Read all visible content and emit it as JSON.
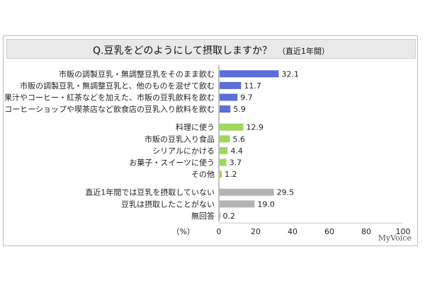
{
  "header": {
    "title": "Q.豆乳をどのようにして摂取しますか？",
    "subtitle": "（直近1年間）"
  },
  "brand": "MyVoice",
  "colors": {
    "blue": "#5b6fd6",
    "green": "#9fd85a",
    "gray": "#b4b4b4",
    "axis": "#808080",
    "grid": "#c8c8c8"
  },
  "chart_data": {
    "type": "bar",
    "orientation": "horizontal",
    "xlim": [
      0,
      100
    ],
    "x_ticks": [
      0,
      20,
      40,
      60,
      80,
      100
    ],
    "unit_label": "（%）",
    "grid": false,
    "categories": [
      "市販の調製豆乳・無調整豆乳をそのまま飲む",
      "市販の調製豆乳・無調整豆乳と、他のものを混ぜて飲む",
      "果汁やコーヒー・紅茶などを加えた、市販の豆乳飲料を飲む",
      "コーヒーショップや喫茶店など飲食店の豆乳入り飲料を飲む",
      "料理に使う",
      "市販の豆乳入り食品",
      "シリアルにかける",
      "お菓子・スイーツに使う",
      "その他",
      "直近1年間では豆乳を摂取していない",
      "豆乳は摂取したことがない",
      "無回答"
    ],
    "values": [
      32.1,
      11.7,
      9.7,
      5.9,
      12.9,
      5.6,
      4.4,
      3.7,
      1.2,
      29.5,
      19.0,
      0.2
    ],
    "value_labels": [
      "32.1",
      "11.7",
      "9.7",
      "5.9",
      "12.9",
      "5.6",
      "4.4",
      "3.7",
      "1.2",
      "29.5",
      "19.0",
      "0.2"
    ],
    "groups": [
      "blue",
      "blue",
      "blue",
      "blue",
      "green",
      "green",
      "green",
      "green",
      "green",
      "gray",
      "gray",
      "gray"
    ]
  }
}
